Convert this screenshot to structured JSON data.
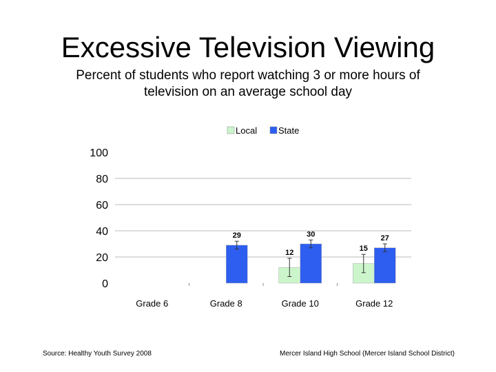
{
  "slide": {
    "title": "Excessive Television Viewing",
    "subtitle": "Percent of students who report watching 3 or more hours of television on an average school day",
    "source": "Source: Healthy Youth Survey 2008",
    "school": "Mercer Island High School (Mercer Island School District)"
  },
  "chart_data": {
    "type": "bar",
    "categories": [
      "Grade 6",
      "Grade 8",
      "Grade 10",
      "Grade 12"
    ],
    "series": [
      {
        "name": "Local",
        "color": "#ccf5cc",
        "values": [
          null,
          null,
          12,
          15
        ],
        "error": [
          null,
          null,
          7,
          7
        ]
      },
      {
        "name": "State",
        "color": "#2e5ef0",
        "values": [
          null,
          29,
          30,
          27
        ],
        "error": [
          null,
          3,
          3,
          3
        ]
      }
    ],
    "ylim": [
      0,
      100
    ],
    "yticks": [
      0,
      20,
      40,
      60,
      80,
      100
    ],
    "grid": true,
    "legend": "top",
    "xlabel": "",
    "ylabel": ""
  }
}
